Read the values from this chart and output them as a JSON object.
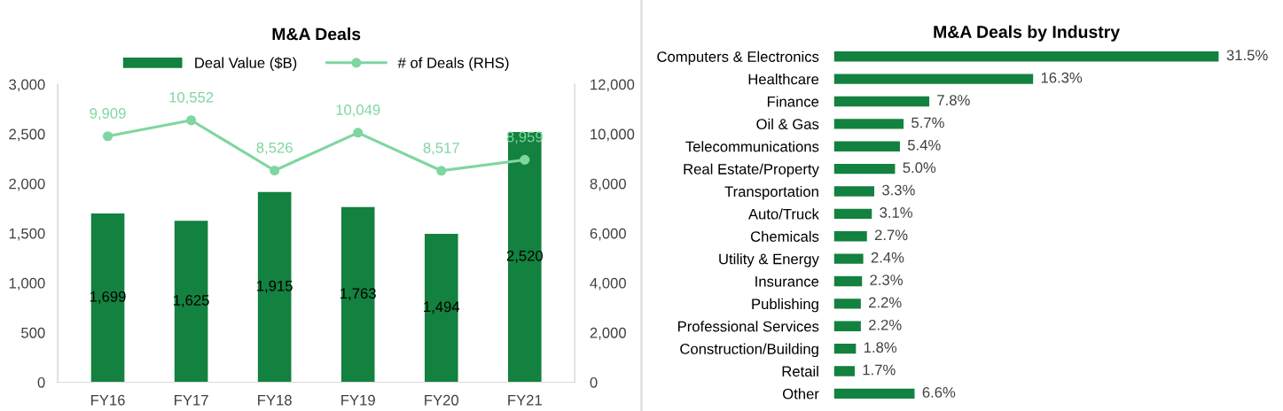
{
  "chart_data": [
    {
      "type": "bar",
      "title": "M&A Deals",
      "categories": [
        "FY16",
        "FY17",
        "FY18",
        "FY19",
        "FY20",
        "FY21"
      ],
      "series": [
        {
          "name": "Deal Value ($B)",
          "color": "#13813f",
          "values": [
            1699,
            1625,
            1915,
            1763,
            1494,
            2520
          ],
          "value_labels": [
            "1,699",
            "1,625",
            "1,915",
            "1,763",
            "1,494",
            "2,520"
          ]
        },
        {
          "name": "# of Deals (RHS)",
          "type": "line",
          "axis": "y2",
          "color": "#7fd6a0",
          "marker": "circle",
          "values": [
            9909,
            10552,
            8526,
            10049,
            8517,
            8959
          ],
          "value_labels": [
            "9,909",
            "10,552",
            "8,526",
            "10,049",
            "8,517",
            "8,959"
          ]
        }
      ],
      "ylim": [
        0,
        3000
      ],
      "yticks": [
        {
          "value": 0,
          "label": "0"
        },
        {
          "value": 500,
          "label": "500"
        },
        {
          "value": 1000,
          "label": "1,000"
        },
        {
          "value": 1500,
          "label": "1,500"
        },
        {
          "value": 2000,
          "label": "2,000"
        },
        {
          "value": 2500,
          "label": "2,500"
        },
        {
          "value": 3000,
          "label": "3,000"
        }
      ],
      "y2lim": [
        0,
        12000
      ],
      "y2ticks": [
        {
          "value": 0,
          "label": "0"
        },
        {
          "value": 2000,
          "label": "2,000"
        },
        {
          "value": 4000,
          "label": "4,000"
        },
        {
          "value": 6000,
          "label": "6,000"
        },
        {
          "value": 8000,
          "label": "8,000"
        },
        {
          "value": 10000,
          "label": "10,000"
        },
        {
          "value": 12000,
          "label": "12,000"
        }
      ],
      "legend": "top",
      "grid": false
    },
    {
      "type": "bar",
      "orientation": "horizontal",
      "title": "M&A Deals by Industry",
      "color": "#13813f",
      "categories": [
        "Computers & Electronics",
        "Healthcare",
        "Finance",
        "Oil & Gas",
        "Telecommunications",
        "Real Estate/Property",
        "Transportation",
        "Auto/Truck",
        "Chemicals",
        "Utility & Energy",
        "Insurance",
        "Publishing",
        "Professional Services",
        "Construction/Building",
        "Retail",
        "Other"
      ],
      "values": [
        31.5,
        16.3,
        7.8,
        5.7,
        5.4,
        5.0,
        3.3,
        3.1,
        2.7,
        2.4,
        2.3,
        2.2,
        2.2,
        1.8,
        1.7,
        6.6
      ],
      "value_labels": [
        "31.5%",
        "16.3%",
        "7.8%",
        "5.7%",
        "5.4%",
        "5.0%",
        "3.3%",
        "3.1%",
        "2.7%",
        "2.4%",
        "2.3%",
        "2.2%",
        "2.2%",
        "1.8%",
        "1.7%",
        "6.6%"
      ],
      "tick_labels": "y",
      "grid": false
    }
  ]
}
